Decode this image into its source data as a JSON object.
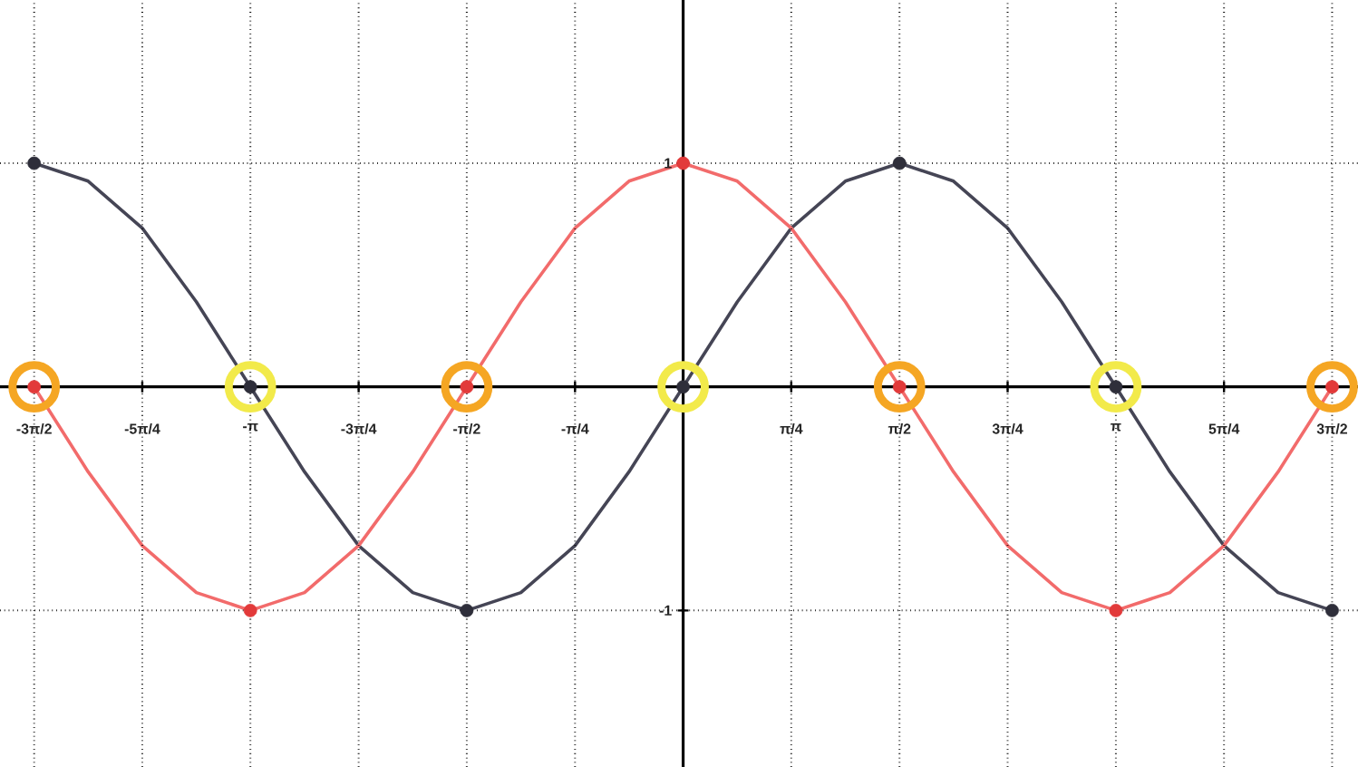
{
  "chart_data": {
    "type": "line",
    "x": [
      -4.712,
      -4.32,
      -3.927,
      -3.534,
      -3.142,
      -2.749,
      -2.356,
      -1.963,
      -1.571,
      -1.178,
      -0.785,
      -0.393,
      0,
      0.393,
      0.785,
      1.178,
      1.571,
      1.963,
      2.356,
      2.749,
      3.142,
      3.534,
      3.927,
      4.32,
      4.712
    ],
    "series": [
      {
        "type": "bubble",
        "color": "#f5a623",
        "x": [
          -4.712,
          -1.571,
          1.571,
          4.712
        ],
        "values": [
          0,
          0,
          0,
          0
        ],
        "sizes": [
          1,
          1,
          1,
          1
        ]
      },
      {
        "type": "bubble",
        "color": "#f2ea4a",
        "x": [
          -3.142,
          0,
          3.142
        ],
        "values": [
          0,
          0,
          0
        ],
        "sizes": [
          1,
          1,
          1
        ]
      },
      {
        "color": "#454555",
        "values": [
          1,
          0.92,
          0.71,
          0.38,
          0,
          -0.38,
          -0.71,
          -0.92,
          -1,
          -0.92,
          -0.71,
          -0.38,
          0,
          0.38,
          0.71,
          0.92,
          1,
          0.92,
          0.71,
          0.38,
          0,
          -0.38,
          -0.71,
          -0.92,
          -1
        ]
      },
      {
        "color": "#f26b6b",
        "values": [
          0,
          -0.38,
          -0.71,
          -0.92,
          -1,
          -0.92,
          -0.71,
          -0.38,
          0,
          0.38,
          0.71,
          0.92,
          1,
          0.92,
          0.71,
          0.38,
          0,
          -0.38,
          -0.71,
          -0.92,
          -1,
          -0.92,
          -0.71,
          -0.38,
          0
        ]
      },
      {
        "type": "scatter",
        "marker": "circle",
        "color": "#2e2e3a",
        "x": [
          -4.712,
          -3.142,
          -1.571,
          0,
          1.571,
          3.142,
          4.712
        ],
        "values": [
          1,
          0,
          -1,
          0,
          1,
          0,
          -1
        ]
      },
      {
        "type": "scatter",
        "marker": "circle",
        "color": "#e23a3a",
        "x": [
          -4.712,
          -3.142,
          -1.571,
          0,
          1.571,
          3.142,
          4.712
        ],
        "values": [
          0,
          -1,
          0,
          1,
          0,
          -1,
          0
        ]
      }
    ],
    "xlim": [
      -4.96,
      4.9
    ],
    "ylim": [
      -1.7,
      1.73
    ],
    "xticks": [
      {
        "value": -4.712,
        "label": "-3π/2"
      },
      {
        "value": -3.927,
        "label": "-5π/4"
      },
      {
        "value": -3.142,
        "label": "-π"
      },
      {
        "value": -2.356,
        "label": "-3π/4"
      },
      {
        "value": -1.571,
        "label": "-π/2"
      },
      {
        "value": -0.785,
        "label": "-π/4"
      },
      {
        "value": 0.785,
        "label": "π/4"
      },
      {
        "value": 1.571,
        "label": "π/2"
      },
      {
        "value": 2.356,
        "label": "3π/4"
      },
      {
        "value": 3.142,
        "label": "π"
      },
      {
        "value": 3.927,
        "label": "5π/4"
      },
      {
        "value": 4.712,
        "label": "3π/2"
      }
    ],
    "yticks": [
      -1,
      1
    ],
    "grid": true,
    "line_style": "solid",
    "marker": "none"
  }
}
